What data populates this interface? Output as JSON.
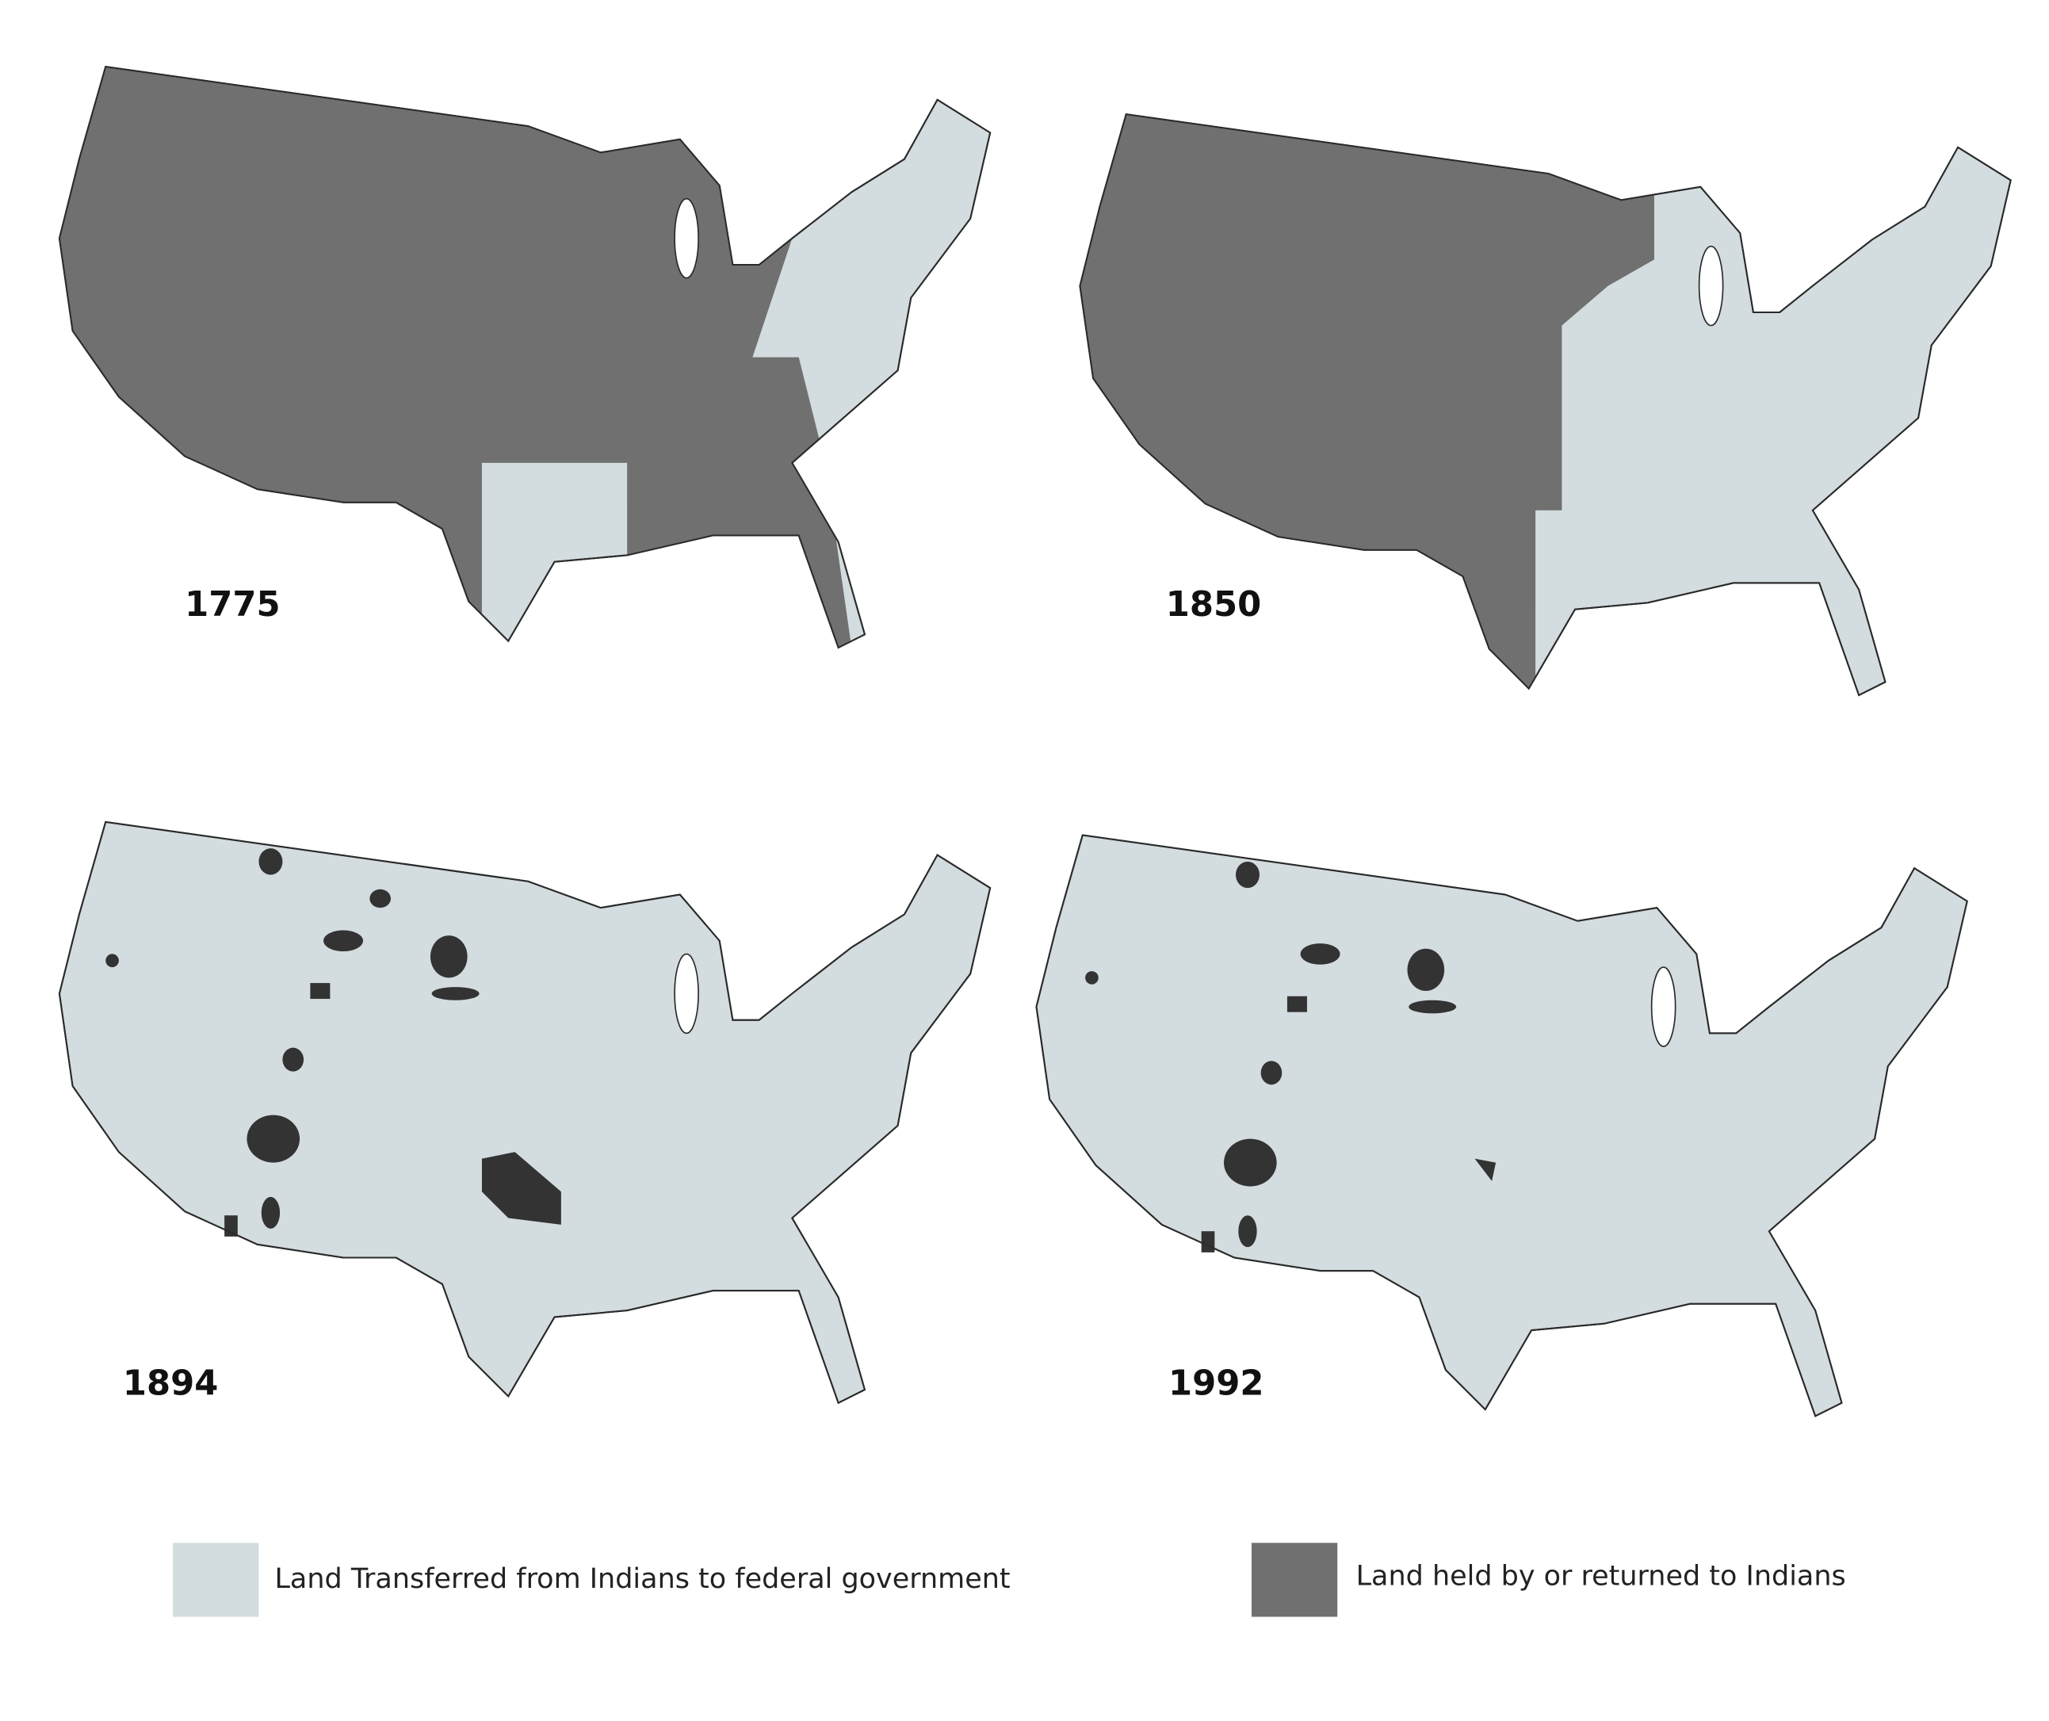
{
  "maps": [
    {
      "year": "1775"
    },
    {
      "year": "1850"
    },
    {
      "year": "1894"
    },
    {
      "year": "1992"
    }
  ],
  "legend": [
    {
      "label": "Land Transferred from Indians to federal government"
    },
    {
      "label": "Land held by or returned to Indians"
    }
  ]
}
